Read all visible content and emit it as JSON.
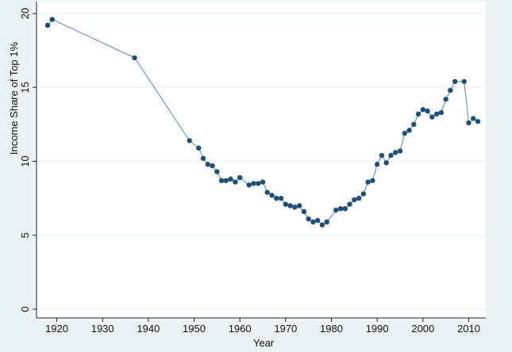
{
  "chart_data": {
    "type": "line",
    "title": "",
    "xlabel": "Year",
    "ylabel": "Income Share of Top 1%",
    "xlim": [
      1916,
      2014
    ],
    "ylim": [
      0,
      20
    ],
    "x_ticks": [
      1920,
      1930,
      1940,
      1950,
      1960,
      1970,
      1980,
      1990,
      2000,
      2010
    ],
    "y_ticks": [
      0,
      5,
      10,
      15,
      20
    ],
    "grid": true,
    "markers": true,
    "colors": {
      "line": "#6f95b8",
      "marker": "#1f4e78",
      "plot_background": "#ffffff",
      "outer_background": "#eaf2f3",
      "grid": "#eaf2f3"
    },
    "series": [
      {
        "points": [
          [
            1918,
            19.2
          ],
          [
            1919,
            19.6
          ],
          [
            1937,
            17.0
          ],
          [
            1949,
            11.4
          ],
          [
            1951,
            10.9
          ],
          [
            1952,
            10.2
          ],
          [
            1953,
            9.8
          ],
          [
            1954,
            9.7
          ],
          [
            1955,
            9.3
          ],
          [
            1956,
            8.7
          ],
          [
            1957,
            8.7
          ],
          [
            1958,
            8.8
          ],
          [
            1959,
            8.6
          ],
          [
            1960,
            8.9
          ],
          [
            1962,
            8.4
          ],
          [
            1963,
            8.5
          ],
          [
            1964,
            8.5
          ],
          [
            1965,
            8.6
          ],
          [
            1966,
            7.9
          ],
          [
            1967,
            7.7
          ],
          [
            1968,
            7.5
          ],
          [
            1969,
            7.5
          ],
          [
            1970,
            7.1
          ],
          [
            1971,
            7.0
          ],
          [
            1972,
            6.9
          ],
          [
            1973,
            7.0
          ],
          [
            1974,
            6.6
          ],
          [
            1975,
            6.1
          ],
          [
            1976,
            5.9
          ],
          [
            1977,
            6.0
          ],
          [
            1978,
            5.7
          ],
          [
            1979,
            5.9
          ],
          [
            1981,
            6.7
          ],
          [
            1982,
            6.8
          ],
          [
            1983,
            6.8
          ],
          [
            1984,
            7.1
          ],
          [
            1985,
            7.4
          ],
          [
            1986,
            7.5
          ],
          [
            1987,
            7.8
          ],
          [
            1988,
            8.6
          ],
          [
            1989,
            8.7
          ],
          [
            1990,
            9.8
          ],
          [
            1991,
            10.4
          ],
          [
            1992,
            9.9
          ],
          [
            1993,
            10.4
          ],
          [
            1994,
            10.6
          ],
          [
            1995,
            10.7
          ],
          [
            1996,
            11.9
          ],
          [
            1997,
            12.1
          ],
          [
            1998,
            12.5
          ],
          [
            1999,
            13.2
          ],
          [
            2000,
            13.5
          ],
          [
            2001,
            13.4
          ],
          [
            2002,
            13.0
          ],
          [
            2003,
            13.2
          ],
          [
            2004,
            13.3
          ],
          [
            2005,
            14.2
          ],
          [
            2006,
            14.8
          ],
          [
            2007,
            15.4
          ],
          [
            2009,
            15.4
          ],
          [
            2010,
            12.6
          ],
          [
            2011,
            12.9
          ],
          [
            2012,
            12.7
          ]
        ]
      }
    ]
  }
}
